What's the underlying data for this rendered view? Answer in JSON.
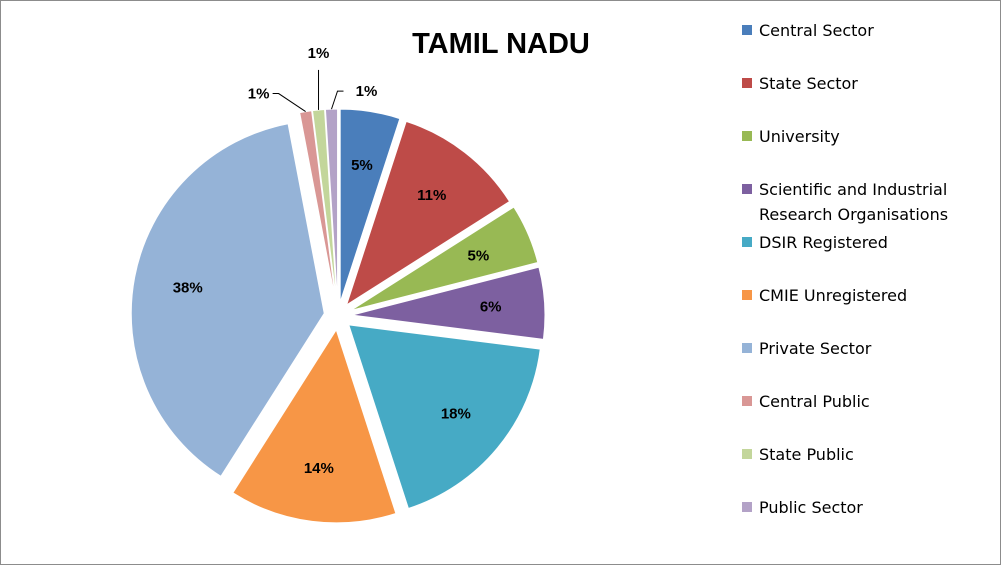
{
  "chart_data": {
    "type": "pie",
    "title": "TAMIL NADU",
    "categories": [
      "Central Sector",
      "State Sector",
      "University",
      "Scientific and Industrial Research Organisations",
      "DSIR Registered",
      "CMIE Unregistered",
      "Private Sector",
      "Central Public",
      "State Public",
      "Public Sector"
    ],
    "legend_lines": [
      [
        "Central Sector"
      ],
      [
        "State Sector"
      ],
      [
        "University"
      ],
      [
        "Scientific and Industrial",
        "Research Organisations"
      ],
      [
        "DSIR Registered"
      ],
      [
        "CMIE Unregistered"
      ],
      [
        "Private Sector"
      ],
      [
        "Central Public"
      ],
      [
        "State Public"
      ],
      [
        "Public Sector"
      ]
    ],
    "values": [
      5,
      11,
      5,
      6,
      18,
      14,
      38,
      1,
      1,
      1
    ],
    "data_labels": [
      "5%",
      "11%",
      "5%",
      "6%",
      "18%",
      "14%",
      "38%",
      "1%",
      "1%",
      "1%"
    ],
    "colors": [
      "#4a7ebb",
      "#be4b48",
      "#98b954",
      "#7d60a0",
      "#46aac5",
      "#f79646",
      "#95b3d7",
      "#d99795",
      "#c3d69b",
      "#b3a2c7"
    ],
    "exploded": true,
    "legend_position": "right"
  }
}
